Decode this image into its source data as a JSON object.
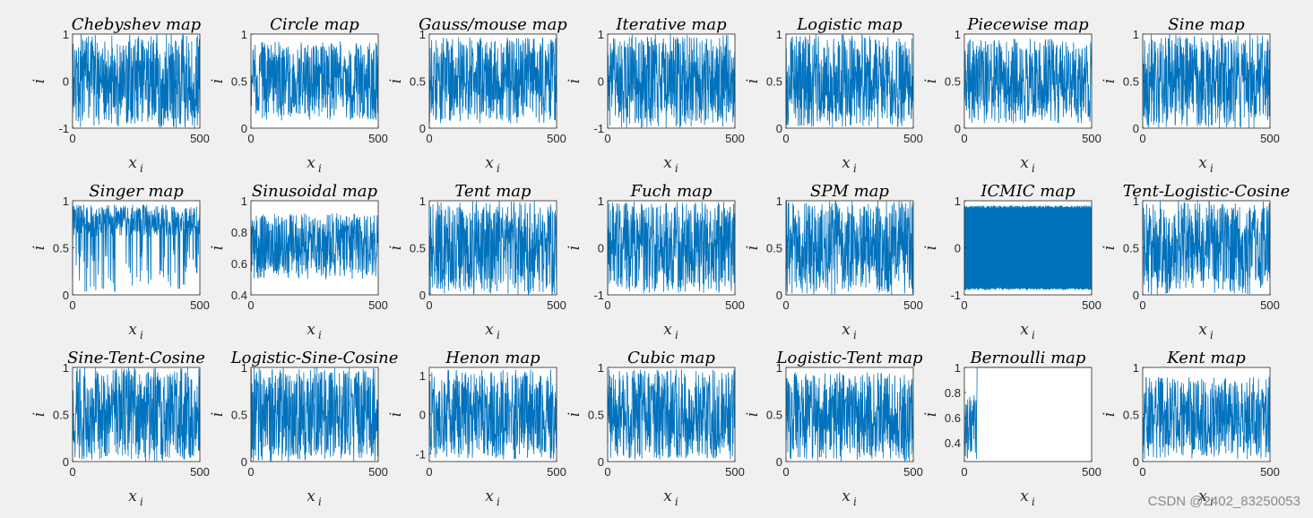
{
  "colors": {
    "line": "#0072BD",
    "axes_bg": "#ffffff",
    "figure_bg": "#f0f0f0",
    "axis": "#262626"
  },
  "watermark": "CSDN @2402_83250053",
  "chart_data": [
    {
      "type": "line",
      "title": "Chebyshev map",
      "xlabel": "x",
      "xlabel_sub": "i",
      "ylabel": "i",
      "xlim": [
        0,
        500
      ],
      "ylim": [
        -1,
        1
      ],
      "xticks": [
        0,
        500
      ],
      "yticks": [
        -1,
        0,
        1
      ],
      "style": "dense",
      "range": [
        -1,
        1
      ],
      "n": 500,
      "seed": 11
    },
    {
      "type": "line",
      "title": "Circle map",
      "xlabel": "x",
      "xlabel_sub": "i",
      "ylabel": "i",
      "xlim": [
        0,
        500
      ],
      "ylim": [
        0,
        1
      ],
      "xticks": [
        0,
        500
      ],
      "yticks": [
        0,
        0.5,
        1
      ],
      "style": "dense",
      "range": [
        0.08,
        0.92
      ],
      "n": 500,
      "seed": 12
    },
    {
      "type": "line",
      "title": "Gauss/mouse map",
      "xlabel": "x",
      "xlabel_sub": "i",
      "ylabel": "i",
      "xlim": [
        0,
        500
      ],
      "ylim": [
        0,
        1
      ],
      "xticks": [
        0,
        500
      ],
      "yticks": [
        0,
        0.5,
        1
      ],
      "style": "dense",
      "range": [
        0.05,
        0.97
      ],
      "n": 500,
      "seed": 13
    },
    {
      "type": "line",
      "title": "Iterative map",
      "xlabel": "x",
      "xlabel_sub": "i",
      "ylabel": "i",
      "xlim": [
        0,
        500
      ],
      "ylim": [
        -1,
        1
      ],
      "xticks": [
        0,
        500
      ],
      "yticks": [
        -1,
        0,
        1
      ],
      "style": "dense",
      "range": [
        -1,
        1
      ],
      "n": 500,
      "seed": 14
    },
    {
      "type": "line",
      "title": "Logistic map",
      "xlabel": "x",
      "xlabel_sub": "i",
      "ylabel": "i",
      "xlim": [
        0,
        500
      ],
      "ylim": [
        0,
        1
      ],
      "xticks": [
        0,
        500
      ],
      "yticks": [
        0,
        0.5,
        1
      ],
      "style": "dense",
      "range": [
        0,
        1
      ],
      "n": 500,
      "seed": 15
    },
    {
      "type": "line",
      "title": "Piecewise map",
      "xlabel": "x",
      "xlabel_sub": "i",
      "ylabel": "i",
      "xlim": [
        0,
        500
      ],
      "ylim": [
        0,
        1
      ],
      "xticks": [
        0,
        500
      ],
      "yticks": [
        0,
        0.5,
        1
      ],
      "style": "dense",
      "range": [
        0.05,
        0.95
      ],
      "n": 500,
      "seed": 16
    },
    {
      "type": "line",
      "title": "Sine map",
      "xlabel": "x",
      "xlabel_sub": "i",
      "ylabel": "i",
      "xlim": [
        0,
        500
      ],
      "ylim": [
        0,
        1
      ],
      "xticks": [
        0,
        500
      ],
      "yticks": [
        0,
        0.5,
        1
      ],
      "style": "dense",
      "range": [
        0,
        1
      ],
      "n": 500,
      "seed": 17
    },
    {
      "type": "line",
      "title": "Singer map",
      "xlabel": "x",
      "xlabel_sub": "i",
      "ylabel": "i",
      "xlim": [
        0,
        500
      ],
      "ylim": [
        0,
        1
      ],
      "xticks": [
        0,
        500
      ],
      "yticks": [
        0,
        0.5,
        1
      ],
      "style": "singer",
      "range": [
        0,
        1
      ],
      "n": 500,
      "seed": 21
    },
    {
      "type": "line",
      "title": "Sinusoidal map",
      "xlabel": "x",
      "xlabel_sub": "i",
      "ylabel": "i",
      "xlim": [
        0,
        500
      ],
      "ylim": [
        0.4,
        1
      ],
      "xticks": [
        0,
        500
      ],
      "yticks": [
        0.4,
        0.6,
        0.8,
        1
      ],
      "style": "dense",
      "range": [
        0.5,
        0.92
      ],
      "n": 500,
      "seed": 22
    },
    {
      "type": "line",
      "title": "Tent map",
      "xlabel": "x",
      "xlabel_sub": "i",
      "ylabel": "i",
      "xlim": [
        0,
        500
      ],
      "ylim": [
        0,
        1
      ],
      "xticks": [
        0,
        500
      ],
      "yticks": [
        0,
        0.5,
        1
      ],
      "style": "dense",
      "range": [
        0,
        1
      ],
      "n": 500,
      "seed": 23
    },
    {
      "type": "line",
      "title": "Fuch map",
      "xlabel": "x",
      "xlabel_sub": "i",
      "ylabel": "i",
      "xlim": [
        0,
        500
      ],
      "ylim": [
        -1,
        1
      ],
      "xticks": [
        0,
        500
      ],
      "yticks": [
        -1,
        0,
        1
      ],
      "style": "dense",
      "range": [
        -0.98,
        0.98
      ],
      "n": 500,
      "seed": 24
    },
    {
      "type": "line",
      "title": "SPM map",
      "xlabel": "x",
      "xlabel_sub": "i",
      "ylabel": "i",
      "xlim": [
        0,
        500
      ],
      "ylim": [
        0,
        1
      ],
      "xticks": [
        0,
        500
      ],
      "yticks": [
        0,
        0.5,
        1
      ],
      "style": "dense",
      "range": [
        0,
        1
      ],
      "n": 500,
      "seed": 25
    },
    {
      "type": "line",
      "title": "ICMIC map",
      "xlabel": "x",
      "xlabel_sub": "i",
      "ylabel": "i",
      "xlim": [
        0,
        500
      ],
      "ylim": [
        -1,
        1
      ],
      "xticks": [
        0,
        500
      ],
      "yticks": [
        -1,
        0,
        1
      ],
      "style": "icmic",
      "range": [
        -0.9,
        0.9
      ],
      "n": 500,
      "seed": 26
    },
    {
      "type": "line",
      "title": "Tent-Logistic-Cosine",
      "xlabel": "x",
      "xlabel_sub": "i",
      "ylabel": "i",
      "xlim": [
        0,
        500
      ],
      "ylim": [
        0,
        1
      ],
      "xticks": [
        0,
        500
      ],
      "yticks": [
        0,
        0.5,
        1
      ],
      "style": "dense",
      "range": [
        0,
        1
      ],
      "n": 500,
      "seed": 27
    },
    {
      "type": "line",
      "title": "Sine-Tent-Cosine",
      "xlabel": "x",
      "xlabel_sub": "i",
      "ylabel": "i",
      "xlim": [
        0,
        500
      ],
      "ylim": [
        0,
        1
      ],
      "xticks": [
        0,
        500
      ],
      "yticks": [
        0,
        0.5,
        1
      ],
      "style": "dense",
      "range": [
        0,
        1
      ],
      "n": 500,
      "seed": 31
    },
    {
      "type": "line",
      "title": "Logistic-Sine-Cosine",
      "xlabel": "x",
      "xlabel_sub": "i",
      "ylabel": "i",
      "xlim": [
        0,
        500
      ],
      "ylim": [
        0,
        1
      ],
      "xticks": [
        0,
        500
      ],
      "yticks": [
        0,
        0.5,
        1
      ],
      "style": "dense",
      "range": [
        0,
        1
      ],
      "n": 500,
      "seed": 32
    },
    {
      "type": "line",
      "title": "Henon map",
      "xlabel": "x",
      "xlabel_sub": "i",
      "ylabel": "i",
      "xlim": [
        0,
        500
      ],
      "ylim": [
        -1.2,
        1.2
      ],
      "xticks": [
        0,
        500
      ],
      "yticks": [
        -1,
        0,
        1
      ],
      "style": "dense",
      "range": [
        -1.15,
        1.15
      ],
      "n": 500,
      "seed": 33
    },
    {
      "type": "line",
      "title": "Cubic map",
      "xlabel": "x",
      "xlabel_sub": "i",
      "ylabel": "i",
      "xlim": [
        0,
        500
      ],
      "ylim": [
        0,
        1
      ],
      "xticks": [
        0,
        500
      ],
      "yticks": [
        0,
        0.5,
        1
      ],
      "style": "dense",
      "range": [
        0.02,
        0.98
      ],
      "n": 500,
      "seed": 34
    },
    {
      "type": "line",
      "title": "Logistic-Tent map",
      "xlabel": "x",
      "xlabel_sub": "i",
      "ylabel": "i",
      "xlim": [
        0,
        500
      ],
      "ylim": [
        0,
        1
      ],
      "xticks": [
        0,
        500
      ],
      "yticks": [
        0,
        0.5,
        1
      ],
      "style": "dense",
      "range": [
        0,
        0.95
      ],
      "n": 500,
      "seed": 35
    },
    {
      "type": "line",
      "title": "Bernoulli map",
      "xlabel": "x",
      "xlabel_sub": "i",
      "ylabel": "i",
      "xlim": [
        0,
        500
      ],
      "ylim": [
        0.25,
        1
      ],
      "xticks": [
        0,
        500
      ],
      "yticks": [
        0.4,
        0.6,
        0.8,
        1
      ],
      "style": "bernoulli",
      "range": [
        0.25,
        0.78
      ],
      "n": 500,
      "seed": 36
    },
    {
      "type": "line",
      "title": "Kent map",
      "xlabel": "x",
      "xlabel_sub": "i",
      "ylabel": "i",
      "xlim": [
        0,
        500
      ],
      "ylim": [
        0,
        1
      ],
      "xticks": [
        0,
        500
      ],
      "yticks": [
        0,
        0.5,
        1
      ],
      "style": "dense",
      "range": [
        0.02,
        0.9
      ],
      "n": 500,
      "seed": 37
    }
  ]
}
